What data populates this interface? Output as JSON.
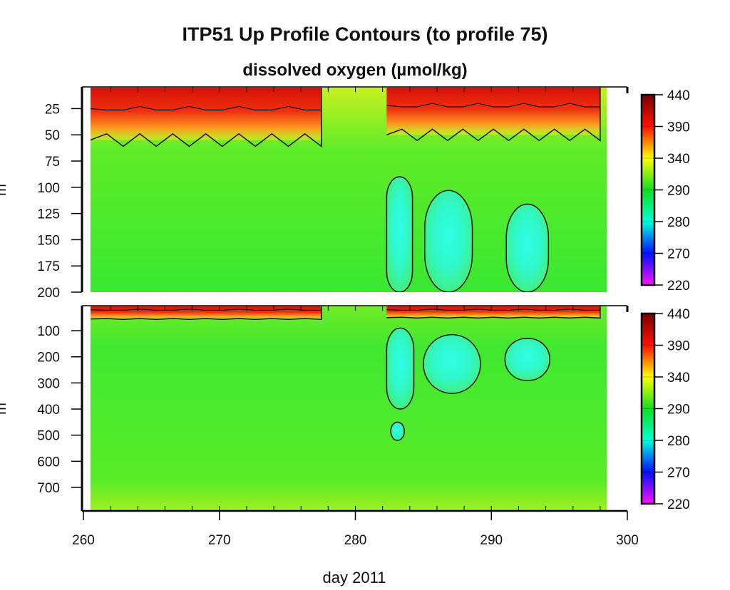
{
  "chart_data": {
    "type": "heatmap",
    "title": "ITP51 Up Profile Contours (to profile 75)",
    "subtitle": "dissolved oxygen (µmol/kg)",
    "xlabel": "day 2011",
    "ylabel": "m",
    "xlim": [
      260,
      300
    ],
    "xticks": [
      "260",
      "270",
      "280",
      "290",
      "300"
    ],
    "data_day_range": [
      260.5,
      298.5
    ],
    "colorbar": {
      "ticks": [
        "440",
        "390",
        "340",
        "290",
        "280",
        "270",
        "220"
      ],
      "colors": [
        "#7a0000",
        "#ff1000",
        "#ffff00",
        "#10e020",
        "#00ffd8",
        "#0010ff",
        "#ff10ff"
      ]
    },
    "panels": [
      {
        "name": "upper",
        "ylim": [
          5,
          200
        ],
        "yticks": [
          "25",
          "50",
          "75",
          "100",
          "125",
          "150",
          "175",
          "200"
        ],
        "background_value": 300,
        "surface_layers": [
          {
            "day_start": 260.5,
            "day_end": 277.5,
            "high_depth": 25,
            "contour_depth": 55,
            "value": 400
          },
          {
            "day_start": 282.3,
            "day_end": 298.0,
            "high_depth": 22,
            "contour_depth": 50,
            "value": 385
          }
        ],
        "low_oxygen_lenses": [
          {
            "day_start": 282.3,
            "day_end": 284.2,
            "depth_top": 90,
            "depth_bottom": 200,
            "value": 282
          },
          {
            "day_start": 285.1,
            "day_end": 288.6,
            "depth_top": 103,
            "depth_bottom": 200,
            "value": 281
          },
          {
            "day_start": 291.1,
            "day_end": 294.2,
            "depth_top": 116,
            "depth_bottom": 200,
            "value": 283
          }
        ]
      },
      {
        "name": "lower",
        "ylim": [
          7,
          790
        ],
        "yticks": [
          "100",
          "200",
          "300",
          "400",
          "500",
          "600",
          "700"
        ],
        "background_value": 300,
        "surface_layers": [
          {
            "day_start": 260.5,
            "day_end": 277.5,
            "high_depth": 20,
            "contour_depth": 55,
            "value": 400
          },
          {
            "day_start": 282.3,
            "day_end": 298.0,
            "high_depth": 20,
            "contour_depth": 50,
            "value": 385
          }
        ],
        "low_oxygen_lenses": [
          {
            "day_start": 282.3,
            "day_end": 284.3,
            "depth_top": 90,
            "depth_bottom": 400,
            "value": 283
          },
          {
            "day_start": 282.6,
            "day_end": 283.6,
            "depth_top": 450,
            "depth_bottom": 520,
            "value": 285
          },
          {
            "day_start": 285.0,
            "day_end": 289.2,
            "depth_top": 115,
            "depth_bottom": 340,
            "value": 282
          },
          {
            "day_start": 291.0,
            "day_end": 294.3,
            "depth_top": 130,
            "depth_bottom": 290,
            "value": 284
          }
        ]
      }
    ]
  }
}
